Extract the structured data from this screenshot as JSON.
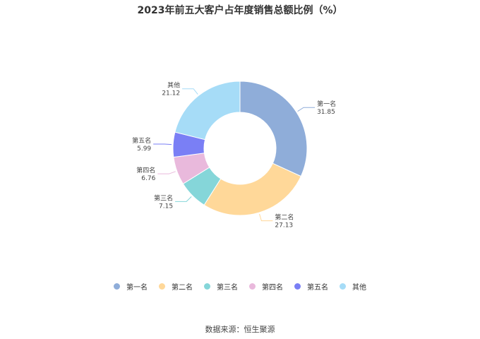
{
  "chart_data": {
    "type": "pie",
    "variant": "donut",
    "title": "2023年前五大客户占年度销售总额比例（%）",
    "slices": [
      {
        "name": "第一名",
        "value": 31.85,
        "color": "#8fadd9"
      },
      {
        "name": "第二名",
        "value": 27.13,
        "color": "#ffd899"
      },
      {
        "name": "第三名",
        "value": 7.15,
        "color": "#85d6d9"
      },
      {
        "name": "第四名",
        "value": 6.76,
        "color": "#e9b9dc"
      },
      {
        "name": "第五名",
        "value": 5.99,
        "color": "#7a7ff5"
      },
      {
        "name": "其他",
        "value": 21.12,
        "color": "#a6dcf7"
      }
    ],
    "legend_position": "bottom"
  },
  "footer": {
    "source": "数据来源：恒生聚源"
  }
}
